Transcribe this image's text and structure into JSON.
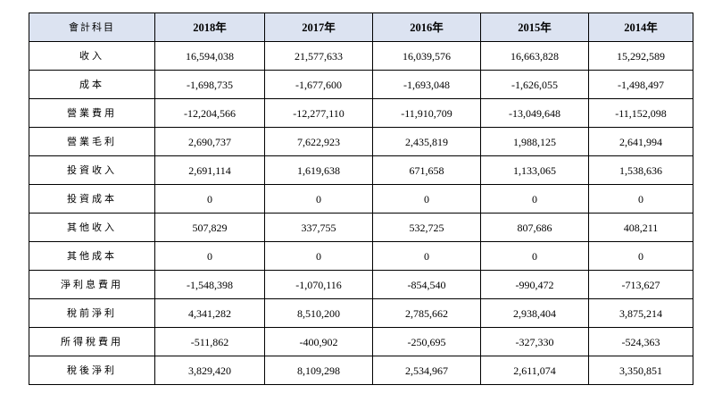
{
  "table": {
    "header": [
      "會計科目",
      "2018年",
      "2017年",
      "2016年",
      "2015年",
      "2014年"
    ],
    "rows": [
      {
        "label": "收入",
        "values": [
          "16,594,038",
          "21,577,633",
          "16,039,576",
          "16,663,828",
          "15,292,589"
        ]
      },
      {
        "label": "成本",
        "values": [
          "-1,698,735",
          "-1,677,600",
          "-1,693,048",
          "-1,626,055",
          "-1,498,497"
        ]
      },
      {
        "label": "營業費用",
        "values": [
          "-12,204,566",
          "-12,277,110",
          "-11,910,709",
          "-13,049,648",
          "-11,152,098"
        ]
      },
      {
        "label": "營業毛利",
        "values": [
          "2,690,737",
          "7,622,923",
          "2,435,819",
          "1,988,125",
          "2,641,994"
        ]
      },
      {
        "label": "投資收入",
        "values": [
          "2,691,114",
          "1,619,638",
          "671,658",
          "1,133,065",
          "1,538,636"
        ]
      },
      {
        "label": "投資成本",
        "values": [
          "0",
          "0",
          "0",
          "0",
          "0"
        ]
      },
      {
        "label": "其他收入",
        "values": [
          "507,829",
          "337,755",
          "532,725",
          "807,686",
          "408,211"
        ]
      },
      {
        "label": "其他成本",
        "values": [
          "0",
          "0",
          "0",
          "0",
          "0"
        ]
      },
      {
        "label": "淨利息費用",
        "values": [
          "-1,548,398",
          "-1,070,116",
          "-854,540",
          "-990,472",
          "-713,627"
        ]
      },
      {
        "label": "稅前淨利",
        "values": [
          "4,341,282",
          "8,510,200",
          "2,785,662",
          "2,938,404",
          "3,875,214"
        ]
      },
      {
        "label": "所得稅費用",
        "values": [
          "-511,862",
          "-400,902",
          "-250,695",
          "-327,330",
          "-524,363"
        ]
      },
      {
        "label": "稅後淨利",
        "values": [
          "3,829,420",
          "8,109,298",
          "2,534,967",
          "2,611,074",
          "3,350,851"
        ]
      }
    ]
  },
  "colors": {
    "header_background": "#dce3f1",
    "border": "#000000",
    "text": "#000000"
  }
}
